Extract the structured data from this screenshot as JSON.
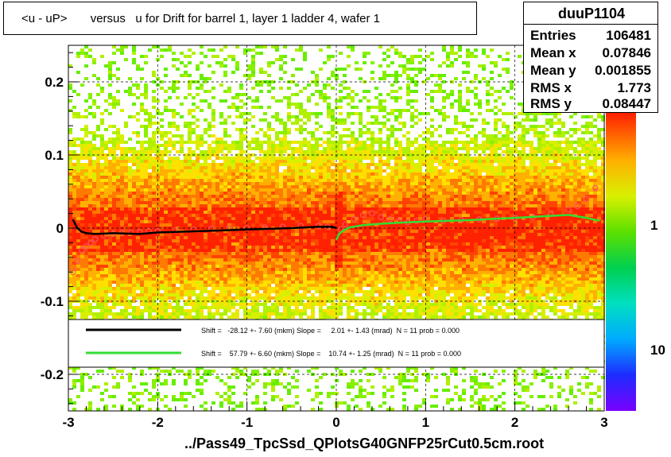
{
  "title": "<u - uP>       versus   u for Drift for barrel 1, layer 1 ladder 4, wafer 1",
  "file_label": "../Pass49_TpcSsd_QPlotsG40GNFP25rCut0.5cm.root",
  "stats": {
    "name": "duuP1104",
    "rows": [
      {
        "label": "Entries",
        "value": "106481"
      },
      {
        "label": "Mean x",
        "value": "0.07846"
      },
      {
        "label": "Mean y",
        "value": "0.001855"
      },
      {
        "label": "RMS x",
        "value": "1.773"
      },
      {
        "label": "RMS y",
        "value": "0.08447"
      }
    ]
  },
  "colors": {
    "fit_black": "#000000",
    "fit_green": "#33dd33",
    "profile_marker": "#ff5566"
  },
  "chart_data": {
    "type": "heatmap",
    "xlim": [
      -3,
      3
    ],
    "ylim": [
      -0.25,
      0.25
    ],
    "x_ticks": [
      -3,
      -2,
      -1,
      0,
      1,
      2,
      3
    ],
    "x_tick_labels": [
      "-3",
      "-2",
      "-1",
      "0",
      "1",
      "2",
      "3"
    ],
    "y_ticks": [
      -0.2,
      -0.1,
      0,
      0.1,
      0.2
    ],
    "y_tick_labels": [
      "-0.2",
      "-0.1",
      "0",
      "0.1",
      "0.2"
    ],
    "grid": true,
    "colorbar": {
      "scale": "log",
      "tick_labels": [
        "10",
        "1"
      ]
    },
    "legend": {
      "position": "lower-center",
      "entries": [
        {
          "color": "#000000",
          "text": "Shift =   -28.12 +- 7.60 (mkm) Slope =     2.01 +- 1.43 (mrad)  N = 11 prob = 0.000"
        },
        {
          "color": "#33dd33",
          "text": "Shift =    57.79 +- 6.60 (mkm) Slope =    10.74 +- 1.25 (mrad)  N = 11 prob = 0.000"
        }
      ]
    },
    "fit_black": {
      "x": [
        -2.95,
        -2.9,
        -2.85,
        -2.8,
        -2.7,
        -2.5,
        -2.2,
        -2.0,
        -1.5,
        -1.0,
        -0.5,
        -0.2,
        -0.05,
        0.0
      ],
      "y": [
        0.012,
        0.0,
        -0.005,
        -0.007,
        -0.008,
        -0.007,
        -0.008,
        -0.006,
        -0.004,
        -0.002,
        0.0,
        0.002,
        0.002,
        0.0
      ]
    },
    "fit_green": {
      "x": [
        0.0,
        0.03,
        0.08,
        0.15,
        0.3,
        0.5,
        0.8,
        1.0,
        1.5,
        2.0,
        2.3,
        2.6,
        2.8,
        2.95
      ],
      "y": [
        -0.016,
        -0.008,
        -0.003,
        0.001,
        0.004,
        0.006,
        0.008,
        0.009,
        0.011,
        0.014,
        0.016,
        0.018,
        0.014,
        0.01
      ]
    },
    "profile": {
      "x": [
        -2.95,
        -2.9,
        -2.85,
        -2.8,
        -2.75,
        -2.7,
        -2.6,
        -2.5,
        -2.4,
        -2.3,
        -2.2,
        -2.1,
        -2.0,
        -1.8,
        -1.6,
        -1.4,
        -1.2,
        -1.0,
        -0.8,
        -0.6,
        -0.4,
        -0.2,
        -0.1,
        0.05,
        0.1,
        0.2,
        0.3,
        0.4,
        0.5,
        0.6,
        0.7,
        0.8,
        0.9,
        1.0,
        1.2,
        1.4,
        1.6,
        1.8,
        2.0,
        2.2,
        2.4,
        2.6,
        2.7,
        2.8,
        2.9
      ],
      "y": [
        -0.06,
        -0.045,
        -0.03,
        -0.025,
        -0.02,
        -0.015,
        -0.01,
        -0.008,
        -0.006,
        -0.006,
        -0.005,
        -0.004,
        -0.004,
        -0.003,
        -0.002,
        -0.001,
        0.0,
        0.0,
        0.001,
        0.002,
        0.003,
        0.003,
        0.002,
        -0.002,
        0.005,
        0.012,
        0.018,
        0.02,
        0.015,
        0.012,
        0.01,
        0.008,
        0.01,
        0.012,
        0.01,
        0.011,
        0.012,
        0.013,
        0.014,
        0.015,
        0.02,
        0.025,
        0.03,
        0.04,
        0.055
      ]
    }
  }
}
